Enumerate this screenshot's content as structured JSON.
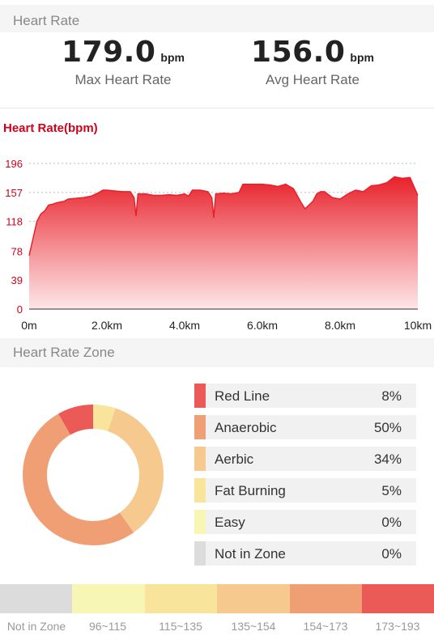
{
  "heart_rate_header": "Heart Rate",
  "stats": {
    "max_value": "179.0",
    "max_unit": "bpm",
    "max_label": "Max Heart Rate",
    "avg_value": "156.0",
    "avg_unit": "bpm",
    "avg_label": "Avg Heart Rate"
  },
  "chart_data": {
    "type": "area",
    "title": "Heart Rate(bpm)",
    "x_unit": "km",
    "y_ticks": [
      "196",
      "157",
      "118",
      "78",
      "39",
      "0"
    ],
    "y_tick_values": [
      196,
      157,
      118,
      78,
      39,
      0
    ],
    "x_ticks": [
      "0m",
      "2.0km",
      "4.0km",
      "6.0km",
      "8.0km",
      "10km"
    ],
    "ylim": [
      0,
      196
    ],
    "xlim": [
      0,
      10
    ],
    "grid": true,
    "color": "#e8202a",
    "x": [
      0,
      0.1,
      0.2,
      0.3,
      0.4,
      0.5,
      0.6,
      0.7,
      0.8,
      0.9,
      1.0,
      1.2,
      1.4,
      1.6,
      1.8,
      1.9,
      2.0,
      2.2,
      2.4,
      2.6,
      2.7,
      2.75,
      2.8,
      3.0,
      3.2,
      3.4,
      3.6,
      3.8,
      4.0,
      4.1,
      4.2,
      4.4,
      4.6,
      4.7,
      4.75,
      4.8,
      5.0,
      5.2,
      5.4,
      5.5,
      5.6,
      5.8,
      6.0,
      6.2,
      6.4,
      6.6,
      6.8,
      7.0,
      7.1,
      7.3,
      7.4,
      7.5,
      7.6,
      7.8,
      8.0,
      8.2,
      8.4,
      8.6,
      8.8,
      9.0,
      9.2,
      9.4,
      9.6,
      9.8,
      10.0
    ],
    "y": [
      72,
      95,
      118,
      128,
      132,
      140,
      141,
      143,
      144,
      145,
      148,
      149,
      150,
      152,
      157,
      160,
      160,
      159,
      158,
      158,
      150,
      125,
      155,
      155,
      153,
      153,
      154,
      153,
      155,
      152,
      160,
      160,
      158,
      150,
      123,
      155,
      156,
      155,
      157,
      168,
      168,
      168,
      168,
      167,
      165,
      168,
      162,
      143,
      135,
      145,
      155,
      158,
      158,
      150,
      148,
      155,
      160,
      158,
      166,
      167,
      170,
      178,
      176,
      177,
      153
    ]
  },
  "zone_header": "Heart Rate Zone",
  "zones": [
    {
      "name": "Red Line",
      "percent": "8%",
      "value": 8,
      "color": "#ec5a57"
    },
    {
      "name": "Anaerobic",
      "percent": "50%",
      "value": 50,
      "color": "#f09f74"
    },
    {
      "name": "Aerbic",
      "percent": "34%",
      "value": 34,
      "color": "#f6ca8e"
    },
    {
      "name": "Fat Burning",
      "percent": "5%",
      "value": 5,
      "color": "#f8e49b"
    },
    {
      "name": "Easy",
      "percent": "0%",
      "value": 0,
      "color": "#f8f6b5"
    },
    {
      "name": "Not in Zone",
      "percent": "0%",
      "value": 0,
      "color": "#dcdcdc"
    }
  ],
  "legend": [
    {
      "label": "Not in Zone",
      "color": "#dcdcdc"
    },
    {
      "label": "96~115",
      "color": "#f8f6b5"
    },
    {
      "label": "115~135",
      "color": "#f8e49b"
    },
    {
      "label": "135~154",
      "color": "#f6ca8e"
    },
    {
      "label": "154~173",
      "color": "#f09f74"
    },
    {
      "label": "173~193",
      "color": "#ec5a57"
    }
  ]
}
